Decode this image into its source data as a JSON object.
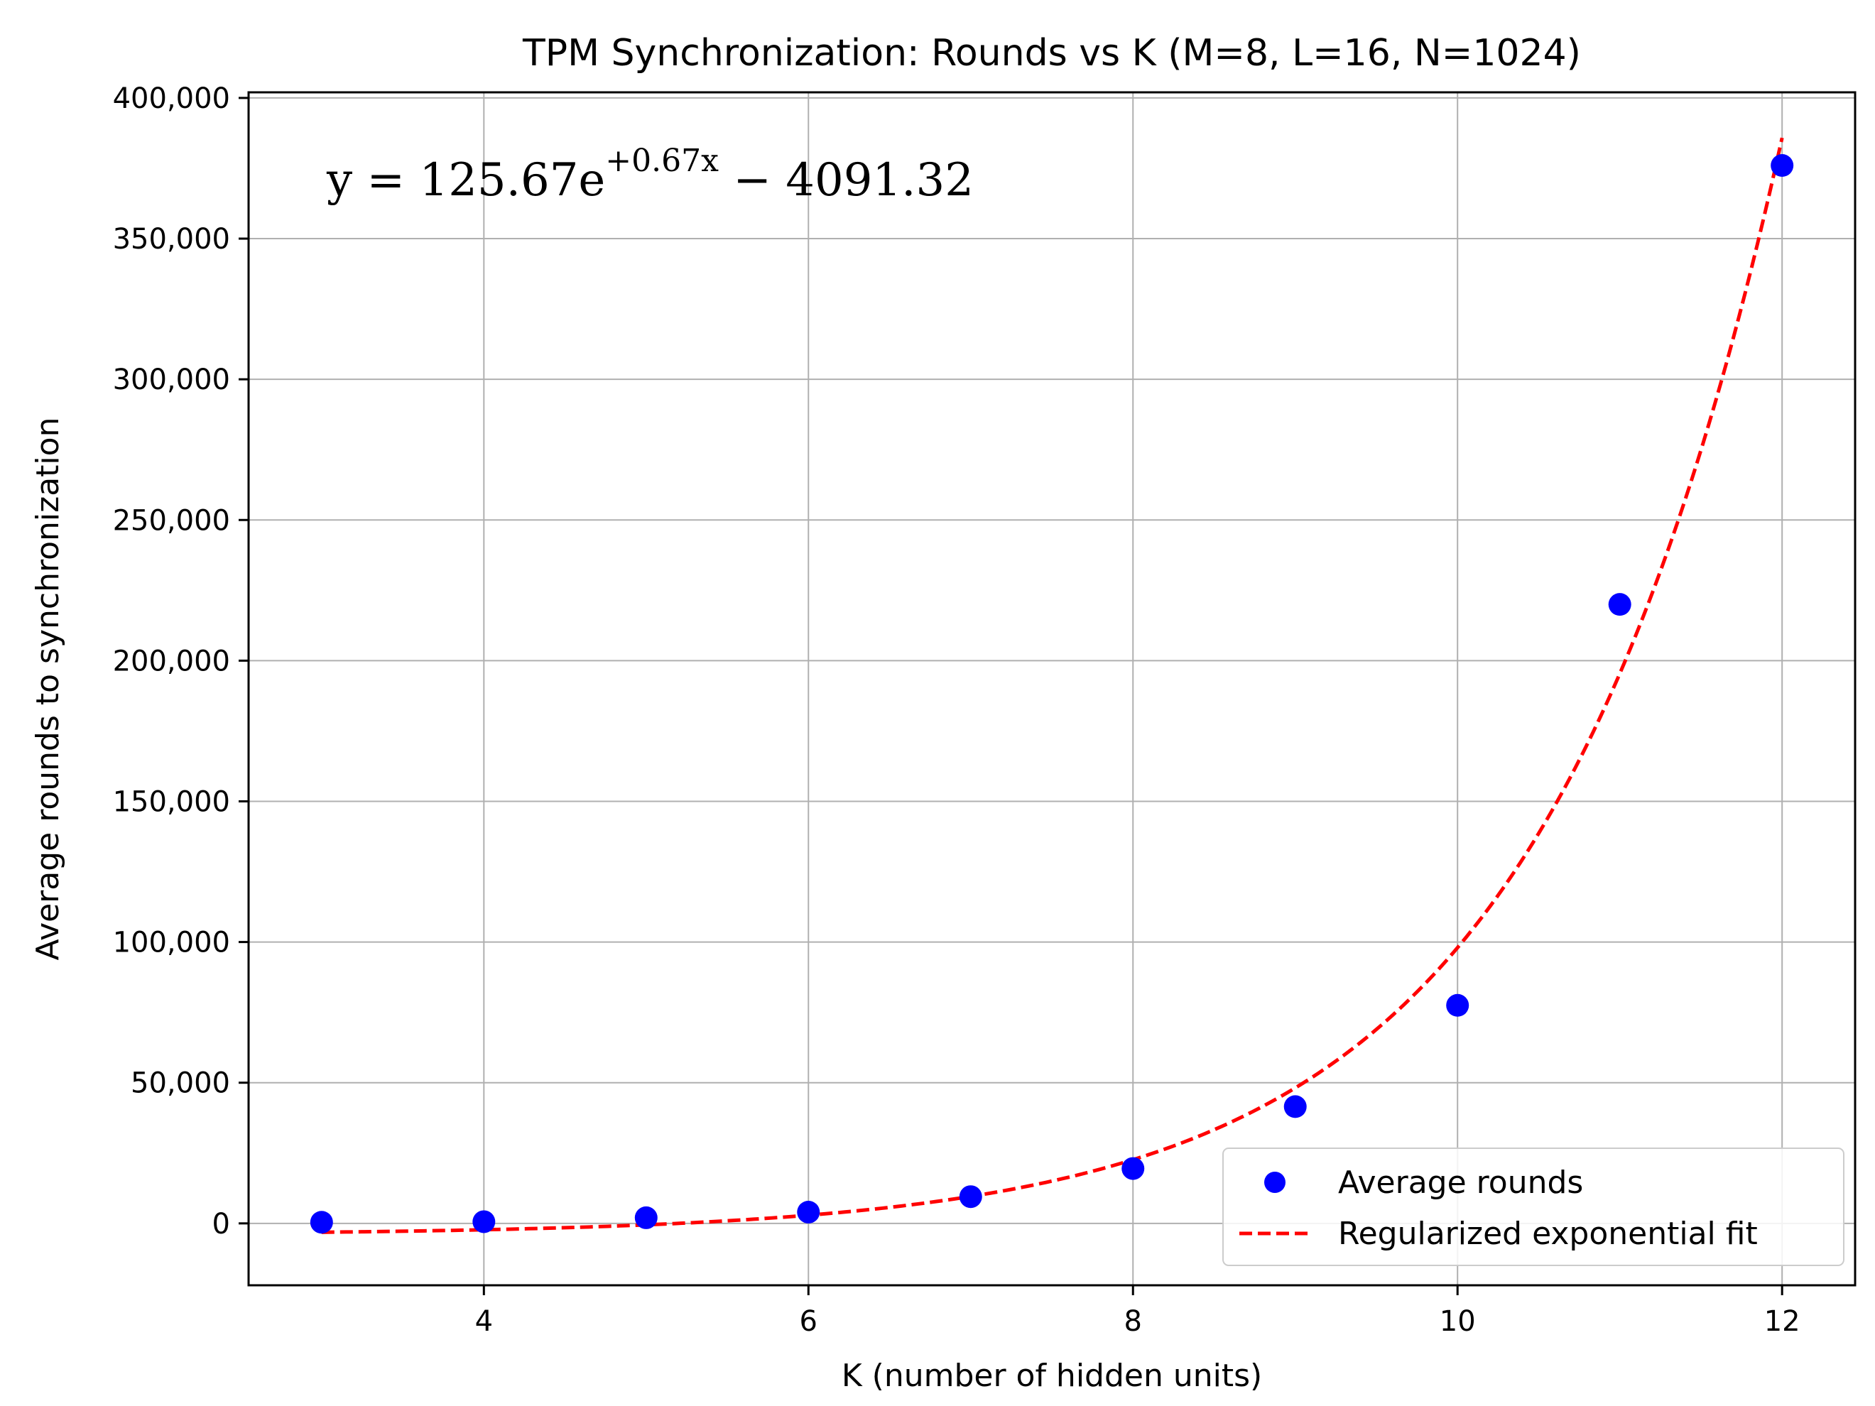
{
  "chart_data": {
    "type": "scatter",
    "title": "TPM Synchronization: Rounds vs K (M=8, L=16, N=1024)",
    "xlabel": "K (number of hidden units)",
    "ylabel": "Average rounds to synchronization",
    "xlim": [
      2.55,
      12.45
    ],
    "ylim": [
      -22000,
      402000
    ],
    "xticks": [
      4,
      6,
      8,
      10,
      12
    ],
    "xtick_labels": [
      "4",
      "6",
      "8",
      "10",
      "12"
    ],
    "yticks": [
      0,
      50000,
      100000,
      150000,
      200000,
      250000,
      300000,
      350000,
      400000
    ],
    "ytick_labels": [
      "0",
      "50,000",
      "100,000",
      "150,000",
      "200,000",
      "250,000",
      "300,000",
      "350,000",
      "400,000"
    ],
    "grid": true,
    "equation": {
      "lead": "y = 125.67e",
      "exponent": "+0.67x",
      "tail": " − 4091.32"
    },
    "fit_params": {
      "a": 125.67,
      "b": 0.67,
      "c": -4091.32
    },
    "series": [
      {
        "name": "Average rounds",
        "kind": "scatter",
        "color": "#0000ff",
        "x": [
          3,
          4,
          5,
          6,
          7,
          8,
          9,
          10,
          11,
          12
        ],
        "values": [
          400,
          600,
          2000,
          4000,
          9500,
          19500,
          41500,
          77500,
          220000,
          376000
        ]
      },
      {
        "name": "Regularized exponential fit",
        "kind": "line",
        "style": "dashed",
        "color": "#ff0000",
        "x_range": [
          3,
          12
        ]
      }
    ],
    "legend_position": "lower-right"
  }
}
